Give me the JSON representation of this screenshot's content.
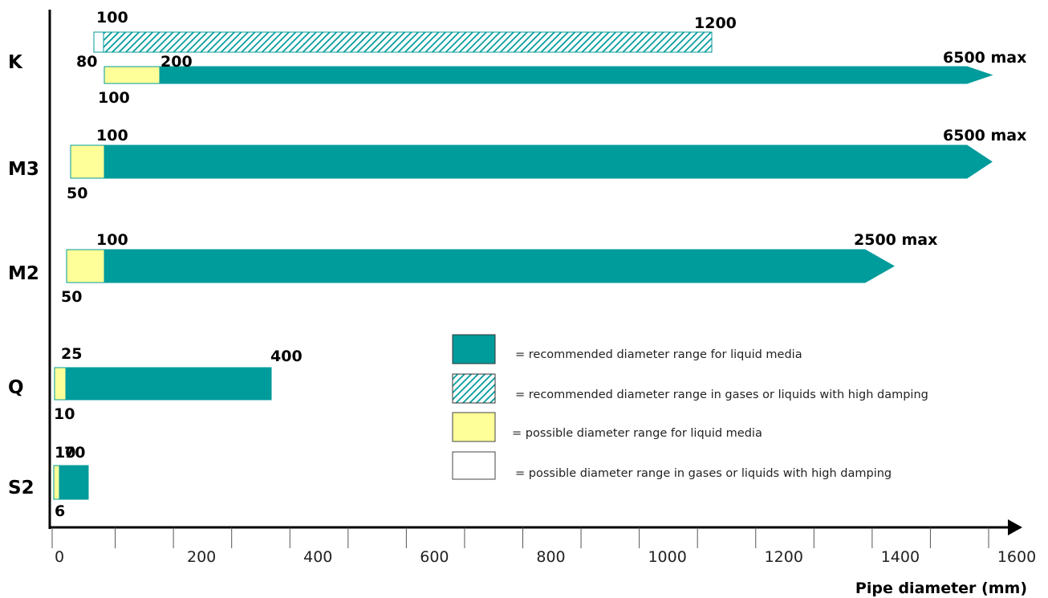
{
  "chart_data": {
    "type": "bar",
    "orientation": "horizontal-range",
    "xlabel": "Pipe diameter (mm)",
    "x_ticks": [
      0,
      200,
      400,
      600,
      800,
      1000,
      1200,
      1400,
      1600
    ],
    "x_tick_labels": [
      "0",
      "200",
      "400",
      "600",
      "800",
      "1000",
      "1200",
      "1400",
      "1600"
    ],
    "xlim": [
      0,
      1700
    ],
    "colors": {
      "recommended": "#009b9b",
      "possible": "#ffff99",
      "gas_possible": "#ffffff",
      "outline": "#009b9b",
      "axis": "#000000"
    },
    "categories": [
      "K",
      "M3",
      "M2",
      "Q",
      "S2"
    ],
    "series": [
      {
        "category": "K",
        "segments": [
          {
            "kind": "gas_possible",
            "start": 80,
            "end": 100
          },
          {
            "kind": "gas_recommended",
            "start": 100,
            "end": 1200
          }
        ],
        "labels": [
          {
            "text": "100",
            "at": 100,
            "pos": "above"
          },
          {
            "text": "1200",
            "at": 1200,
            "pos": "above"
          }
        ]
      },
      {
        "category": "K",
        "segments": [
          {
            "kind": "possible",
            "start": 100,
            "end": 200
          },
          {
            "kind": "recommended",
            "start": 200,
            "end": 6500,
            "arrow": true
          }
        ],
        "labels": [
          {
            "text": "80",
            "at": 80,
            "pos": "above-left"
          },
          {
            "text": "200",
            "at": 200,
            "pos": "above"
          },
          {
            "text": "100",
            "at": 100,
            "pos": "below"
          },
          {
            "text": "6500 max",
            "at": 6500,
            "pos": "above-end"
          }
        ]
      },
      {
        "category": "M3",
        "segments": [
          {
            "kind": "possible",
            "start": 50,
            "end": 100
          },
          {
            "kind": "recommended",
            "start": 100,
            "end": 6500,
            "arrow": true
          }
        ],
        "labels": [
          {
            "text": "100",
            "at": 100,
            "pos": "above"
          },
          {
            "text": "50",
            "at": 50,
            "pos": "below"
          },
          {
            "text": "6500 max",
            "at": 6500,
            "pos": "above-end"
          }
        ]
      },
      {
        "category": "M2",
        "segments": [
          {
            "kind": "possible",
            "start": 50,
            "end": 100
          },
          {
            "kind": "recommended",
            "start": 100,
            "end": 2500,
            "arrow": true
          }
        ],
        "labels": [
          {
            "text": "100",
            "at": 100,
            "pos": "above"
          },
          {
            "text": "50",
            "at": 50,
            "pos": "below"
          },
          {
            "text": "2500 max",
            "at": 2500,
            "pos": "above-end"
          }
        ]
      },
      {
        "category": "Q",
        "segments": [
          {
            "kind": "possible",
            "start": 10,
            "end": 25
          },
          {
            "kind": "recommended",
            "start": 25,
            "end": 400
          }
        ],
        "labels": [
          {
            "text": "25",
            "at": 25,
            "pos": "above"
          },
          {
            "text": "400",
            "at": 400,
            "pos": "above"
          },
          {
            "text": "10",
            "at": 10,
            "pos": "below"
          }
        ]
      },
      {
        "category": "S2",
        "segments": [
          {
            "kind": "possible",
            "start": 6,
            "end": 10
          },
          {
            "kind": "recommended",
            "start": 10,
            "end": 70
          }
        ],
        "labels": [
          {
            "text": "10",
            "at": 10,
            "pos": "above"
          },
          {
            "text": "70",
            "at": 70,
            "pos": "above"
          },
          {
            "text": "6",
            "at": 6,
            "pos": "below"
          }
        ]
      }
    ],
    "legend": [
      {
        "kind": "recommended",
        "label": "= recommended diameter range for liquid media"
      },
      {
        "kind": "gas_recommended",
        "label": "= recommended diameter range in gases or liquids with high damping"
      },
      {
        "kind": "possible",
        "label": "= possible diameter range for liquid media"
      },
      {
        "kind": "gas_possible",
        "label": "= possible diameter range in gases or liquids with high damping"
      }
    ],
    "legend_placement": "right-center",
    "grid": false
  }
}
